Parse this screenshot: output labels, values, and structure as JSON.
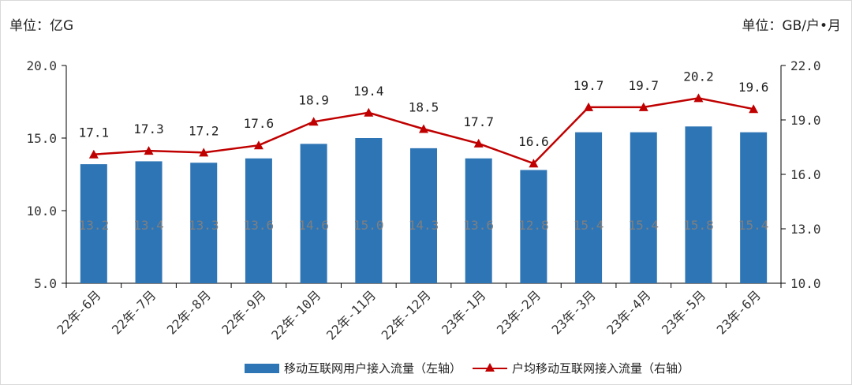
{
  "chart_data": {
    "type": "bar+line",
    "units": {
      "left": "单位：亿G",
      "right": "单位：GB/户•月"
    },
    "categories": [
      "22年-6月",
      "22年-7月",
      "22年-8月",
      "22年-9月",
      "22年-10月",
      "22年-11月",
      "22年-12月",
      "23年-1月",
      "23年-2月",
      "23年-3月",
      "23年-4月",
      "23年-5月",
      "23年-6月"
    ],
    "series": [
      {
        "name": "移动互联网用户接入流量（左轴）",
        "type": "bar",
        "axis": "left",
        "color": "#2e75b6",
        "values": [
          13.2,
          13.4,
          13.3,
          13.6,
          14.6,
          15.0,
          14.3,
          13.6,
          12.8,
          15.4,
          15.4,
          15.8,
          15.4
        ],
        "labels": [
          "13.2",
          "13.4",
          "13.3",
          "13.6",
          "14.6",
          "15.0",
          "14.3",
          "13.6",
          "12.8",
          "15.4",
          "15.4",
          "15.8",
          "15.4"
        ]
      },
      {
        "name": "户均移动互联网接入流量（右轴）",
        "type": "line",
        "axis": "right",
        "color": "#c00000",
        "values": [
          17.1,
          17.3,
          17.2,
          17.6,
          18.9,
          19.4,
          18.5,
          17.7,
          16.6,
          19.7,
          19.7,
          20.2,
          19.6
        ],
        "labels": [
          "17.1",
          "17.3",
          "17.2",
          "17.6",
          "18.9",
          "19.4",
          "18.5",
          "17.7",
          "16.6",
          "19.7",
          "19.7",
          "20.2",
          "19.6"
        ]
      }
    ],
    "left_axis": {
      "min": 5.0,
      "max": 20.0,
      "ticks": [
        "5.0",
        "10.0",
        "15.0",
        "20.0"
      ]
    },
    "right_axis": {
      "min": 10.0,
      "max": 22.0,
      "ticks": [
        "10.0",
        "13.0",
        "16.0",
        "19.0",
        "22.0"
      ]
    },
    "legend_position": "bottom",
    "grid": false
  }
}
